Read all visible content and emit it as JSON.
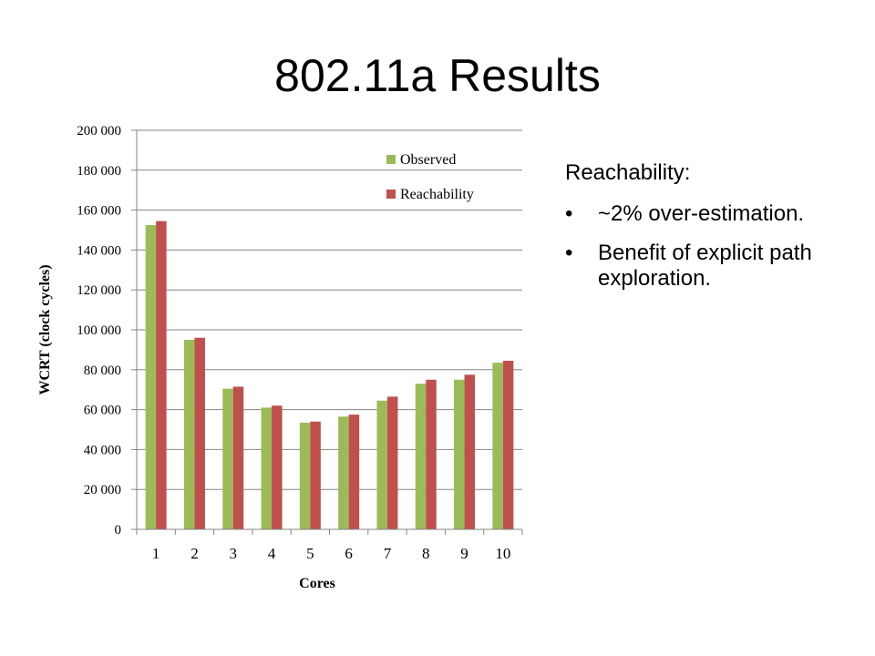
{
  "slide": {
    "title": "802.11a Results"
  },
  "notes": {
    "heading": "Reachability:",
    "bullets": [
      "~2% over-estimation.",
      "Benefit of explicit path exploration."
    ]
  },
  "colors": {
    "observed": "#9BBB59",
    "reachability": "#C0504D",
    "gridline": "#868686",
    "axis": "#868686"
  },
  "chart_data": {
    "type": "bar",
    "title": "",
    "xlabel": "Cores",
    "ylabel": "WCRT (clock cycles)",
    "categories": [
      "1",
      "2",
      "3",
      "4",
      "5",
      "6",
      "7",
      "8",
      "9",
      "10"
    ],
    "ylim": [
      0,
      200000
    ],
    "yticks": [
      0,
      20000,
      40000,
      60000,
      80000,
      100000,
      120000,
      140000,
      160000,
      180000,
      200000
    ],
    "ytick_labels": [
      "0",
      "20 000",
      "40 000",
      "60 000",
      "80 000",
      "100 000",
      "120 000",
      "140 000",
      "160 000",
      "180 000",
      "200 000"
    ],
    "grid": true,
    "legend_position": "top-right",
    "series": [
      {
        "name": "Observed",
        "values": [
          152500,
          95000,
          70500,
          61000,
          53500,
          56500,
          64500,
          73000,
          75000,
          83500
        ]
      },
      {
        "name": "Reachability",
        "values": [
          154500,
          96000,
          71500,
          62000,
          54000,
          57500,
          66500,
          75000,
          77500,
          84500
        ]
      }
    ]
  }
}
